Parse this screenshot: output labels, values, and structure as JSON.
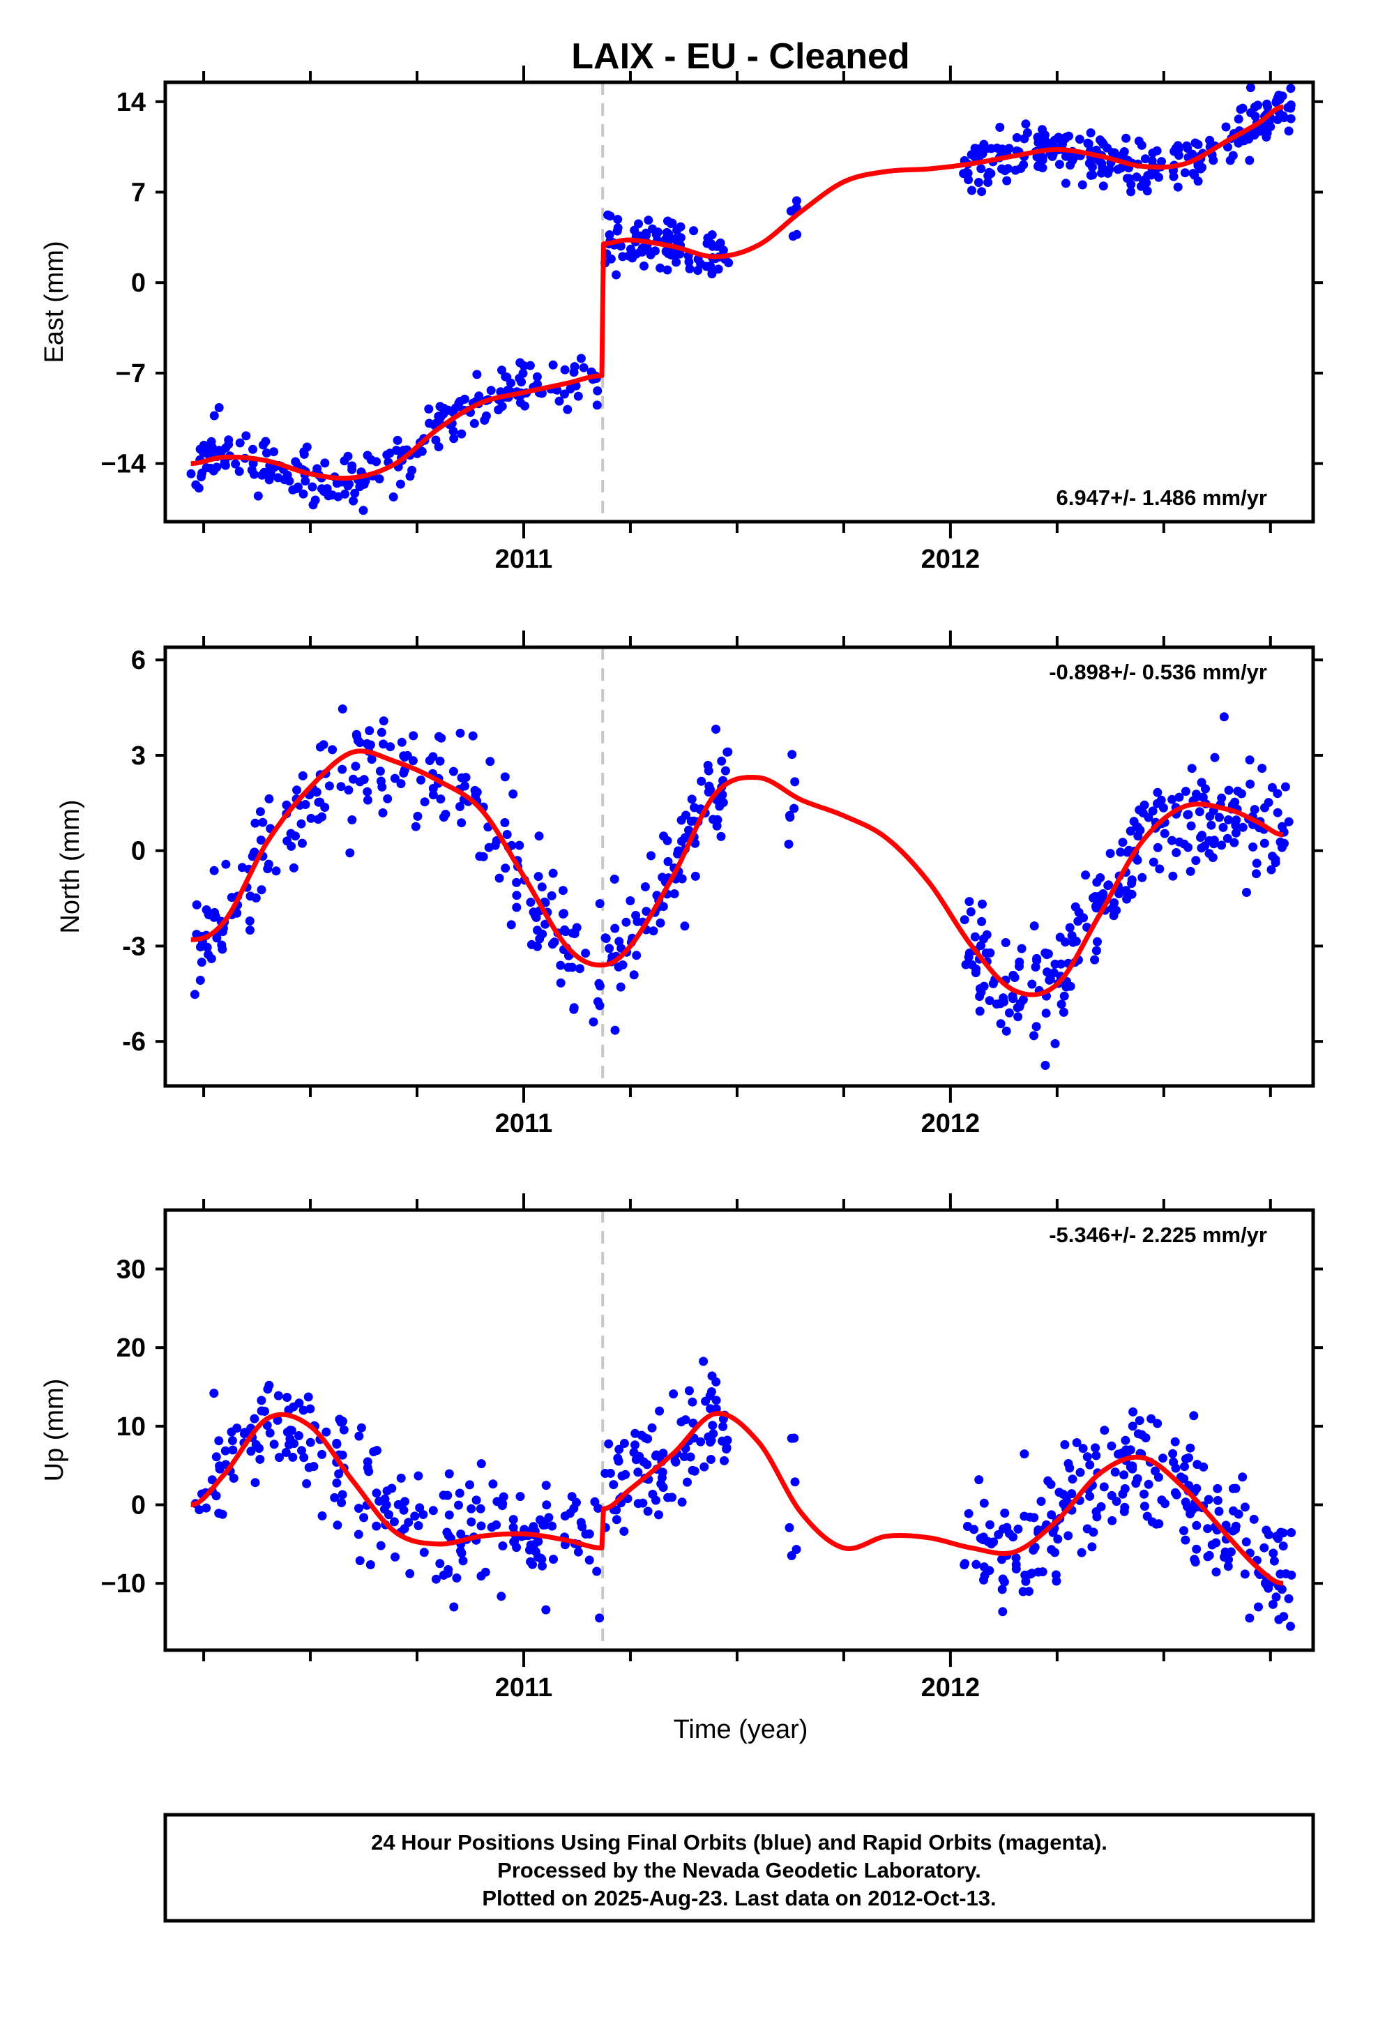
{
  "figure": {
    "title": "LAIX  - EU - Cleaned",
    "xlabel": "Time (year)"
  },
  "caption": {
    "lines": [
      "24 Hour Positions Using Final Orbits (blue) and Rapid Orbits (magenta).",
      "Processed by the Nevada Geodetic Laboratory.",
      "Plotted on 2025-Aug-23. Last data on 2012-Oct-13."
    ]
  },
  "colors": {
    "points": "#0000ff",
    "model": "#ff0000",
    "event_line": "#c8c8c8",
    "frame": "#000000"
  },
  "chart_data": [
    {
      "type": "scatter",
      "ylabel": "East (mm)",
      "rate_label": "6.947+/- 1.486 mm/yr",
      "xlim": [
        2010.16,
        2012.85
      ],
      "ylim": [
        -18.5,
        15.5
      ],
      "yticks": [
        14,
        7,
        0,
        -7,
        -14
      ],
      "ytick_labels": [
        "14",
        "7",
        "0",
        "−7",
        "−14"
      ],
      "xticks": [
        2011,
        2012
      ],
      "xtick_labels": [
        "2011",
        "2012"
      ],
      "event_x": 2011.185,
      "model": {
        "x": [
          2010.22,
          2010.3,
          2010.4,
          2010.5,
          2010.6,
          2010.7,
          2010.8,
          2010.9,
          2011.0,
          2011.1,
          2011.183,
          2011.187,
          2011.25,
          2011.35,
          2011.45,
          2011.55,
          2011.65,
          2011.75,
          2011.85,
          2011.95,
          2012.05,
          2012.15,
          2012.25,
          2012.35,
          2012.45,
          2012.55,
          2012.65,
          2012.72,
          2012.78
        ],
        "y": [
          -14.0,
          -13.5,
          -13.8,
          -14.8,
          -15.1,
          -14.0,
          -11.3,
          -9.3,
          -8.5,
          -7.8,
          -7.2,
          3.0,
          3.3,
          2.8,
          2.0,
          2.9,
          5.5,
          7.8,
          8.6,
          8.8,
          9.2,
          9.8,
          10.3,
          9.8,
          9.0,
          9.2,
          11.0,
          12.3,
          13.6
        ]
      },
      "points": {
        "segments": [
          {
            "x0": 2010.22,
            "x1": 2011.18,
            "n": 230,
            "noise": 1.1
          },
          {
            "x0": 2011.19,
            "x1": 2011.48,
            "n": 95,
            "noise": 1.1
          },
          {
            "x0": 2011.62,
            "x1": 2011.64,
            "n": 6,
            "noise": 1.0
          },
          {
            "x0": 2012.03,
            "x1": 2012.8,
            "n": 250,
            "noise": 1.1
          }
        ],
        "seed": 11
      }
    },
    {
      "type": "scatter",
      "ylabel": "North (mm)",
      "rate_label": "-0.898+/- 0.536 mm/yr",
      "xlim": [
        2010.16,
        2012.85
      ],
      "ylim": [
        -7.4,
        6.4
      ],
      "yticks": [
        6,
        3,
        0,
        -3,
        -6
      ],
      "ytick_labels": [
        "6",
        "3",
        "0",
        "-3",
        "-6"
      ],
      "xticks": [
        2011,
        2012
      ],
      "xtick_labels": [
        "2011",
        "2012"
      ],
      "event_x": 2011.185,
      "model": {
        "x": [
          2010.22,
          2010.3,
          2010.4,
          2010.5,
          2010.6,
          2010.7,
          2010.8,
          2010.9,
          2011.0,
          2011.1,
          2011.18,
          2011.25,
          2011.35,
          2011.45,
          2011.55,
          2011.65,
          2011.75,
          2011.85,
          2011.95,
          2012.05,
          2012.15,
          2012.25,
          2012.35,
          2012.45,
          2012.55,
          2012.65,
          2012.72,
          2012.78
        ],
        "y": [
          -2.8,
          -2.2,
          0.3,
          2.0,
          3.1,
          2.8,
          2.2,
          1.3,
          -0.8,
          -3.0,
          -3.6,
          -3.0,
          -0.8,
          1.8,
          2.3,
          1.6,
          1.1,
          0.4,
          -1.0,
          -3.0,
          -4.4,
          -4.2,
          -2.0,
          0.3,
          1.4,
          1.3,
          0.9,
          0.5
        ]
      },
      "points": {
        "segments": [
          {
            "x0": 2010.22,
            "x1": 2011.18,
            "n": 230,
            "noise": 0.85
          },
          {
            "x0": 2011.19,
            "x1": 2011.48,
            "n": 95,
            "noise": 0.85
          },
          {
            "x0": 2011.62,
            "x1": 2011.64,
            "n": 6,
            "noise": 0.8
          },
          {
            "x0": 2012.03,
            "x1": 2012.8,
            "n": 250,
            "noise": 0.85
          }
        ],
        "seed": 23
      }
    },
    {
      "type": "scatter",
      "ylabel": "Up (mm)",
      "rate_label": "-5.346+/- 2.225 mm/yr",
      "xlim": [
        2010.16,
        2012.85
      ],
      "ylim": [
        -18.5,
        37.5
      ],
      "yticks": [
        30,
        20,
        10,
        0,
        -10
      ],
      "ytick_labels": [
        "30",
        "20",
        "10",
        "0",
        "−10"
      ],
      "xticks": [
        2011,
        2012
      ],
      "xtick_labels": [
        "2011",
        "2012"
      ],
      "event_x": 2011.185,
      "model": {
        "x": [
          2010.22,
          2010.3,
          2010.4,
          2010.5,
          2010.6,
          2010.7,
          2010.8,
          2010.9,
          2011.0,
          2011.1,
          2011.183,
          2011.187,
          2011.25,
          2011.35,
          2011.45,
          2011.55,
          2011.65,
          2011.75,
          2011.85,
          2011.95,
          2012.05,
          2012.15,
          2012.25,
          2012.35,
          2012.45,
          2012.55,
          2012.65,
          2012.72,
          2012.78
        ],
        "y": [
          0.0,
          4.0,
          11.0,
          10.0,
          3.0,
          -3.5,
          -5.0,
          -4.0,
          -3.7,
          -4.5,
          -5.5,
          -0.5,
          2.0,
          6.5,
          11.6,
          8.0,
          -1.0,
          -5.5,
          -4.0,
          -4.2,
          -5.5,
          -6.0,
          -2.0,
          4.0,
          6.0,
          2.0,
          -4.0,
          -8.0,
          -10.0
        ]
      },
      "points": {
        "segments": [
          {
            "x0": 2010.22,
            "x1": 2011.18,
            "n": 230,
            "noise": 3.8
          },
          {
            "x0": 2011.19,
            "x1": 2011.48,
            "n": 95,
            "noise": 3.8
          },
          {
            "x0": 2011.62,
            "x1": 2011.64,
            "n": 6,
            "noise": 3.5
          },
          {
            "x0": 2012.03,
            "x1": 2012.8,
            "n": 250,
            "noise": 3.8
          }
        ],
        "seed": 37
      }
    }
  ]
}
